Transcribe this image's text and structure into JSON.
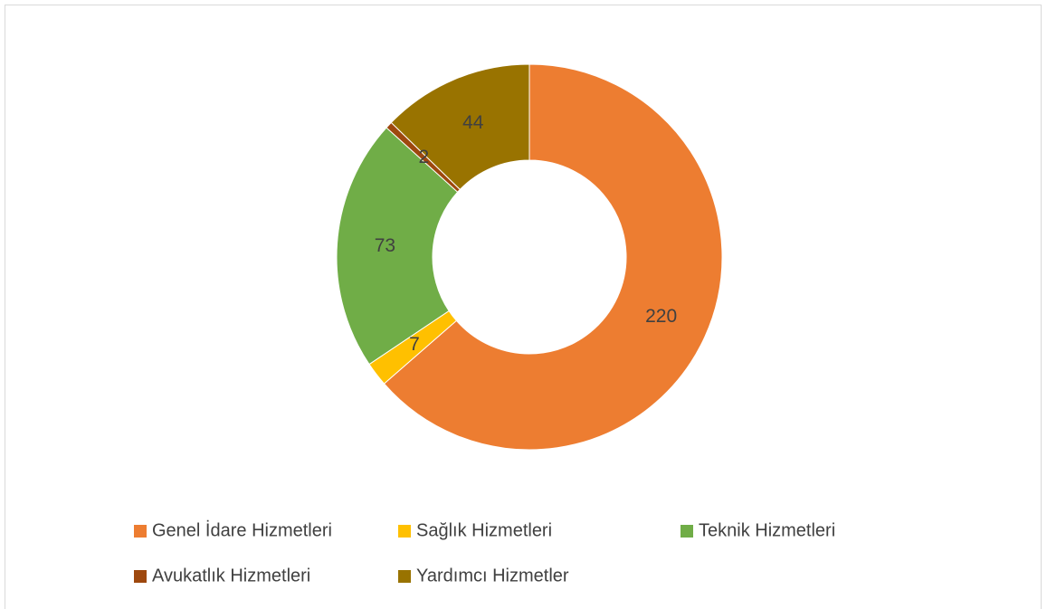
{
  "chart_data": {
    "type": "donut",
    "categories": [
      "Genel İdare Hizmetleri",
      "Sağlık Hizmetleri",
      "Teknik Hizmetleri",
      "Avukatlık Hizmetleri",
      "Yardımcı Hizmetler"
    ],
    "values": [
      220,
      7,
      73,
      2,
      44
    ],
    "colors": [
      "#ED7D31",
      "#FFC000",
      "#70AD47",
      "#9E480E",
      "#997300"
    ],
    "legend": "bottom"
  }
}
